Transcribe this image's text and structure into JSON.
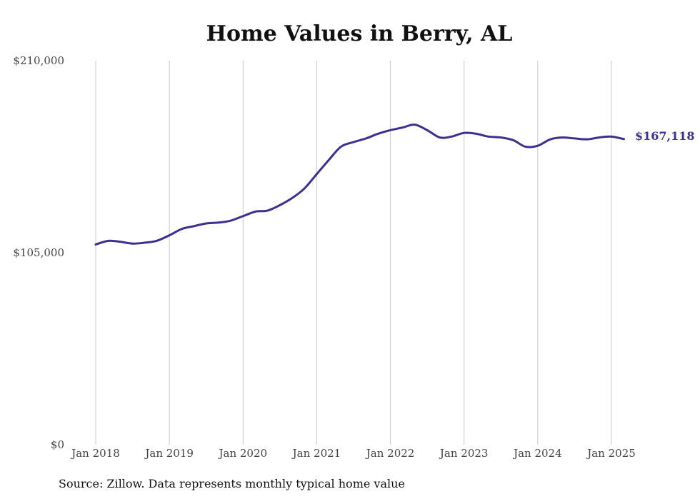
{
  "chart_data": {
    "type": "line",
    "title": "Home Values in Berry, AL",
    "source": "Source: Zillow. Data represents monthly typical home value",
    "xlabel": "",
    "ylabel": "",
    "ylim": [
      0,
      210000
    ],
    "y_ticks": [
      {
        "value": 0,
        "label": "$0"
      },
      {
        "value": 105000,
        "label": "$105,000"
      },
      {
        "value": 210000,
        "label": "$210,000"
      }
    ],
    "x_ticks": [
      {
        "value": 2018.0,
        "label": "Jan 2018"
      },
      {
        "value": 2019.0,
        "label": "Jan 2019"
      },
      {
        "value": 2020.0,
        "label": "Jan 2020"
      },
      {
        "value": 2021.0,
        "label": "Jan 2021"
      },
      {
        "value": 2022.0,
        "label": "Jan 2022"
      },
      {
        "value": 2023.0,
        "label": "Jan 2023"
      },
      {
        "value": 2024.0,
        "label": "Jan 2024"
      },
      {
        "value": 2025.0,
        "label": "Jan 2025"
      }
    ],
    "xlim": [
      2018.0,
      2025.17
    ],
    "grid": "vertical",
    "line_color": "#3b2f8f",
    "end_label": "$167,118",
    "series": [
      {
        "x": [
          2018.0,
          2018.17,
          2018.33,
          2018.5,
          2018.67,
          2018.83,
          2019.0,
          2019.17,
          2019.33,
          2019.5,
          2019.67,
          2019.83,
          2020.0,
          2020.17,
          2020.33,
          2020.5,
          2020.67,
          2020.83,
          2021.0,
          2021.17,
          2021.33,
          2021.5,
          2021.67,
          2021.83,
          2022.0,
          2022.17,
          2022.33,
          2022.5,
          2022.67,
          2022.83,
          2023.0,
          2023.17,
          2023.33,
          2023.5,
          2023.67,
          2023.83,
          2024.0,
          2024.17,
          2024.33,
          2024.5,
          2024.67,
          2024.83,
          2025.0,
          2025.17
        ],
        "values": [
          109500,
          111500,
          111000,
          110000,
          110500,
          111500,
          114500,
          118000,
          119500,
          121000,
          121500,
          122500,
          125000,
          127500,
          128000,
          131000,
          135000,
          140000,
          148000,
          156000,
          163000,
          165500,
          167500,
          170000,
          172000,
          173500,
          175000,
          172000,
          168000,
          168500,
          170500,
          170000,
          168500,
          168000,
          166500,
          163000,
          163500,
          167000,
          168000,
          167500,
          167000,
          168000,
          168500,
          167118
        ]
      }
    ]
  }
}
